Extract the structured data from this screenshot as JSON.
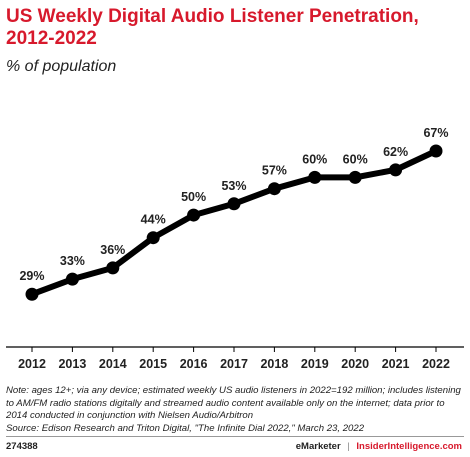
{
  "header": {
    "title": "US Weekly Digital Audio Listener Penetration, 2012-2022",
    "subtitle": "% of population"
  },
  "chart_data": {
    "type": "line",
    "title": "US Weekly Digital Audio Listener Penetration, 2012-2022",
    "subtitle": "% of population",
    "xlabel": "",
    "ylabel": "",
    "x": [
      "2012",
      "2013",
      "2014",
      "2015",
      "2016",
      "2017",
      "2018",
      "2019",
      "2020",
      "2021",
      "2022"
    ],
    "series": [
      {
        "values": [
          29,
          33,
          36,
          44,
          50,
          53,
          57,
          60,
          60,
          62,
          67
        ],
        "data_labels": [
          "29%",
          "33%",
          "36%",
          "44%",
          "50%",
          "53%",
          "57%",
          "60%",
          "60%",
          "62%",
          "67%"
        ]
      }
    ],
    "ylim": [
      15,
      80
    ],
    "grid": false,
    "legend": "none",
    "line_color": "#000000"
  },
  "footer": {
    "note": "Note: ages 12+; via any device; estimated weekly US audio listeners in 2022=192 million; includes listening to AM/FM radio stations digitally and streamed audio content available only on the internet; data prior to 2014 conducted in conjunction with Nielsen Audio/Arbitron",
    "source": "Source: Edison Research and Triton Digital, \"The Infinite Dial 2022,\" March 23, 2022",
    "chart_id": "274388",
    "brand_left": "eMarketer",
    "brand_separator": "|",
    "brand_right": "InsiderIntelligence.com"
  },
  "colors": {
    "title": "#d7192c",
    "line": "#000000",
    "brand_accent": "#d7192c"
  }
}
